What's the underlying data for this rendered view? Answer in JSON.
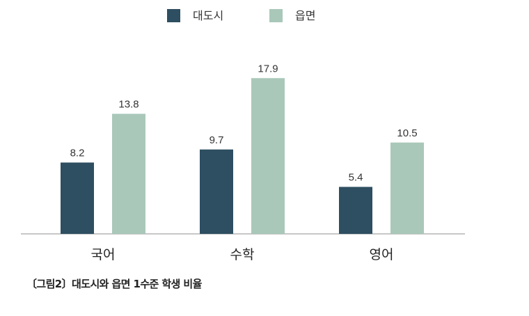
{
  "chart_data": {
    "type": "bar",
    "categories": [
      "국어",
      "수학",
      "영어"
    ],
    "series": [
      {
        "name": "대도시",
        "values": [
          8.2,
          9.7,
          5.4
        ],
        "color": "#2e4e61"
      },
      {
        "name": "읍면",
        "values": [
          13.8,
          17.9,
          10.5
        ],
        "color": "#a9c8b9"
      }
    ],
    "ylim": [
      0,
      20
    ],
    "legend_position": "top-center",
    "grid": false,
    "data_labels": true,
    "title": "",
    "xlabel": "",
    "ylabel": ""
  },
  "caption": "〔그림2〕대도시와 읍면 1수준 학생 비율"
}
